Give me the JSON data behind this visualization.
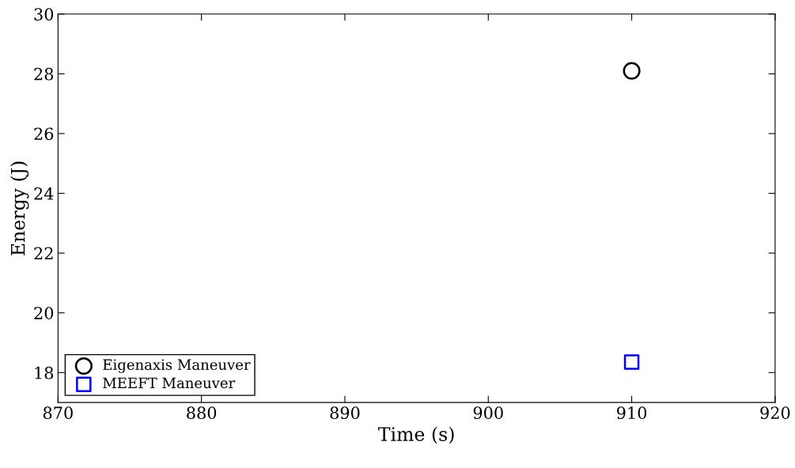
{
  "chart_data": {
    "type": "scatter",
    "xlabel": "Time (s)",
    "ylabel": "Energy (J)",
    "x": [
      910
    ],
    "series": [
      {
        "name": "Eigenaxis Maneuver",
        "color": "#000000",
        "marker": "circle",
        "values": [
          28.1
        ]
      },
      {
        "name": "MEEFT Maneuver",
        "color": "#0000ff",
        "marker": "square",
        "values": [
          18.35
        ]
      }
    ],
    "xlim": [
      870,
      920
    ],
    "xticks": [
      870,
      880,
      890,
      900,
      910,
      920
    ],
    "ylim": [
      17,
      30
    ],
    "yticks": [
      18,
      20,
      22,
      24,
      26,
      28,
      30
    ],
    "grid": false,
    "legend": "bottom left"
  }
}
